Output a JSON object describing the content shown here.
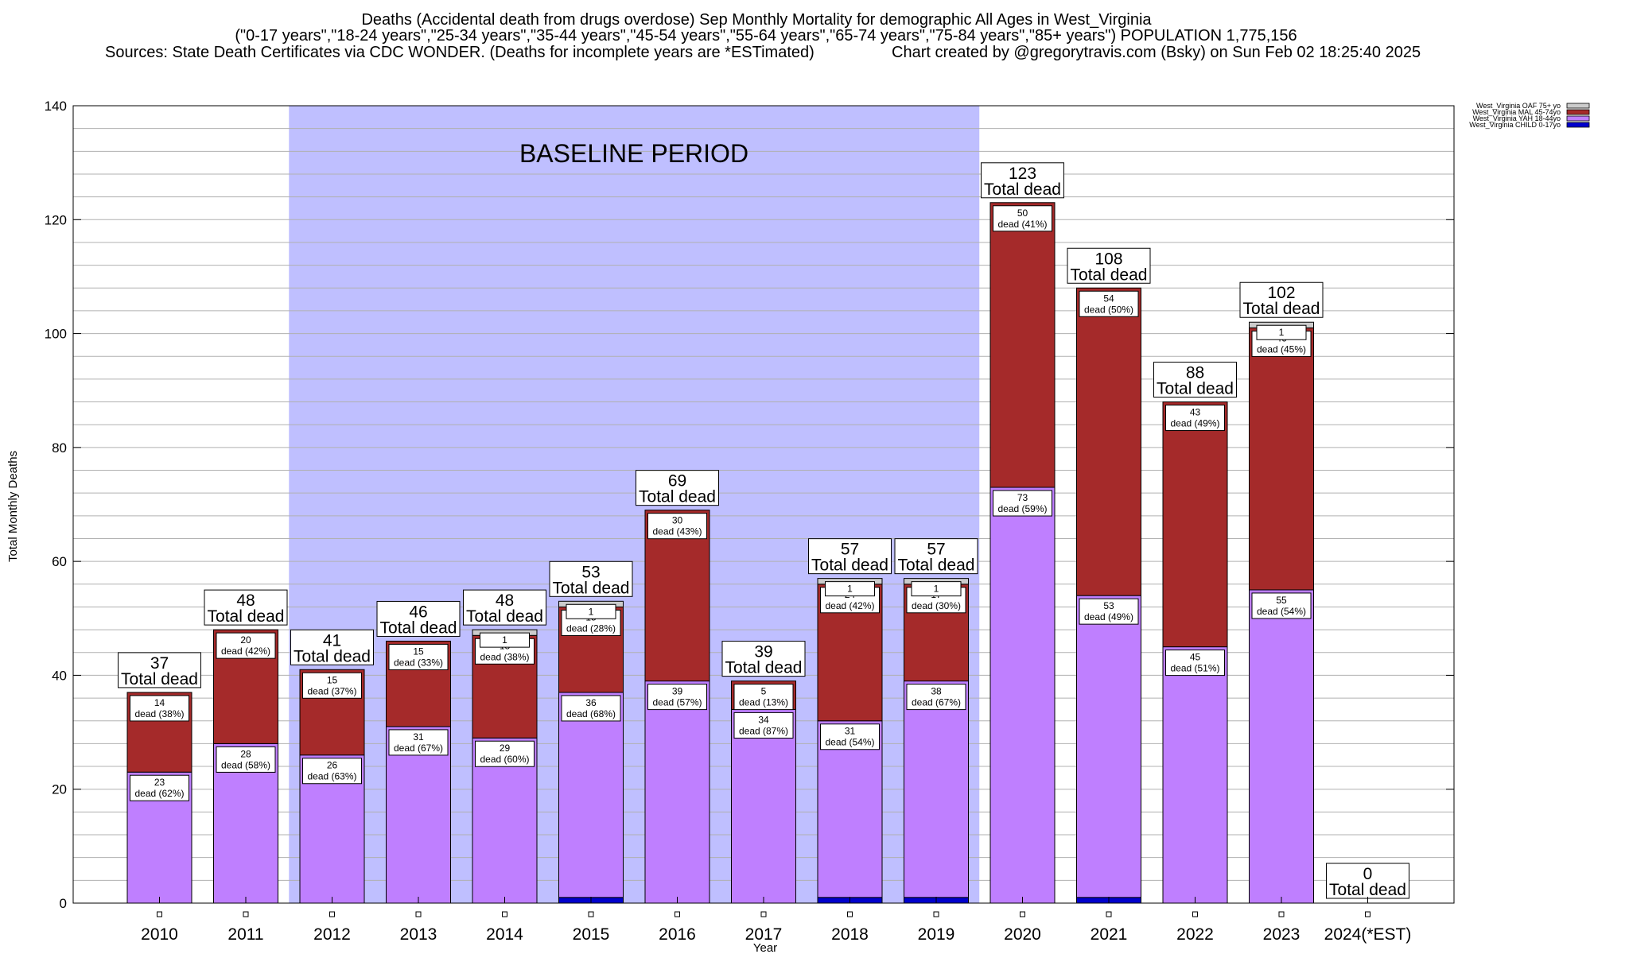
{
  "title": {
    "line1": "Deaths (Accidental death from drugs overdose) Sep Monthly Mortality for demographic All Ages in West_Virginia",
    "line2": "(\"0-17 years\",\"18-24 years\",\"25-34 years\",\"35-44 years\",\"45-54 years\",\"55-64 years\",\"65-74 years\",\"75-84 years\",\"85+ years\") POPULATION 1,775,156",
    "line3_left": "Sources: State Death Certificates via CDC WONDER. (Deaths for incomplete years are *ESTimated)",
    "line3_right": "Chart created by @gregorytravis.com (Bsky) on Sun Feb 02 18:25:40 2025"
  },
  "chart_data": {
    "type": "bar",
    "stacked": true,
    "xlabel": "Year",
    "ylabel": "Total Monthly Deaths",
    "ylim": [
      0,
      140
    ],
    "yticks": [
      0,
      20,
      40,
      60,
      80,
      100,
      120,
      140
    ],
    "grid": true,
    "legend_position": "top-right",
    "categories": [
      "2010",
      "2011",
      "2012",
      "2013",
      "2014",
      "2015",
      "2016",
      "2017",
      "2018",
      "2019",
      "2020",
      "2021",
      "2022",
      "2023",
      "2024(*EST)"
    ],
    "baseline_period": {
      "label": "BASELINE PERIOD",
      "from": "2012",
      "to": "2019"
    },
    "total_suffix": "Total dead",
    "series": [
      {
        "name": "West_Virginia CHILD 0-17yo",
        "color": "#0000cc",
        "values": [
          0,
          0,
          0,
          0,
          0,
          1,
          0,
          0,
          1,
          1,
          0,
          1,
          0,
          0,
          0
        ]
      },
      {
        "name": "West_Virginia YAH 18-44yo",
        "color": "#bf7fff",
        "values": [
          23,
          28,
          26,
          31,
          29,
          36,
          39,
          34,
          31,
          38,
          73,
          53,
          45,
          55,
          0
        ]
      },
      {
        "name": "West_Virginia MAL 45-74yo",
        "color": "#a52a2a",
        "values": [
          14,
          20,
          15,
          15,
          18,
          15,
          30,
          5,
          24,
          17,
          50,
          54,
          43,
          46,
          0
        ]
      },
      {
        "name": "West_Virginia OAF 75+ yo",
        "color": "#cccccc",
        "values": [
          0,
          0,
          0,
          0,
          1,
          1,
          0,
          0,
          1,
          1,
          0,
          0,
          0,
          1,
          0
        ]
      }
    ],
    "totals": [
      37,
      48,
      41,
      46,
      48,
      53,
      69,
      39,
      57,
      57,
      123,
      108,
      88,
      102,
      0
    ],
    "segment_labels": {
      "YAH": [
        "23\ndead (62%)",
        "28\ndead (58%)",
        "26\ndead (63%)",
        "31\ndead (67%)",
        "29\ndead (60%)",
        "36\ndead (68%)",
        "39\ndead (57%)",
        "34\ndead (87%)",
        "31\ndead (54%)",
        "38\ndead (67%)",
        "73\ndead (59%)",
        "53\ndead (49%)",
        "45\ndead (51%)",
        "55\ndead (54%)",
        ""
      ],
      "MAL": [
        "14\ndead (38%)",
        "20\ndead (42%)",
        "15\ndead (37%)",
        "15\ndead (33%)",
        "18\ndead (38%)",
        "15\ndead (28%)",
        "30\ndead (43%)",
        "5\ndead (13%)",
        "24\ndead (42%)",
        "17\ndead (30%)",
        "50\ndead (41%)",
        "54\ndead (50%)",
        "43\ndead (49%)",
        "46\ndead (45%)",
        ""
      ],
      "OAF": [
        "",
        "",
        "",
        "",
        "1",
        "1",
        "",
        "",
        "1",
        "1",
        "",
        "",
        "",
        "1",
        ""
      ]
    },
    "legend": [
      {
        "name": "West_Virginia OAF 75+ yo",
        "color": "#cccccc"
      },
      {
        "name": "West_Virginia MAL 45-74yo",
        "color": "#a52a2a"
      },
      {
        "name": "West_Virginia YAH 18-44yo",
        "color": "#bf7fff"
      },
      {
        "name": "West_Virginia CHILD 0-17yo",
        "color": "#0000cc"
      }
    ],
    "colors": {
      "baseline_fill": "#bfbfff",
      "grid": "#b0b0b0",
      "frame": "#000000"
    }
  }
}
